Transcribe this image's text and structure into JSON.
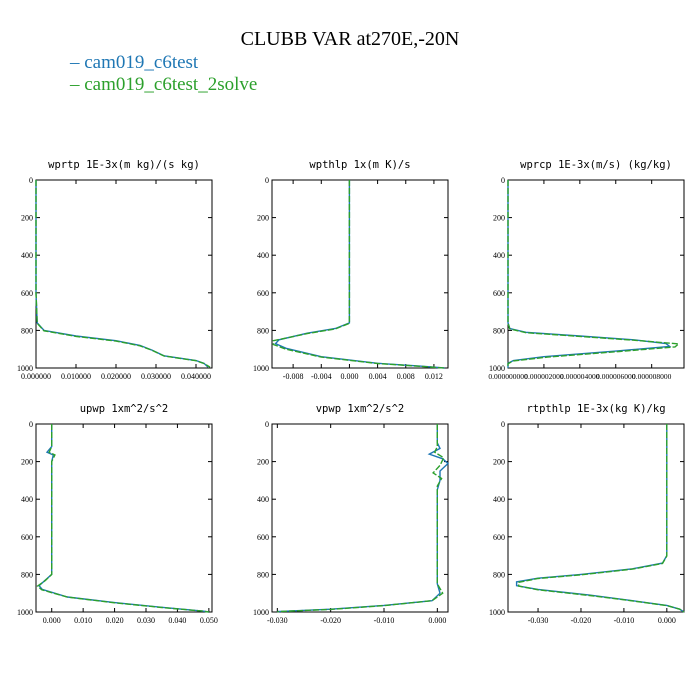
{
  "title": "CLUBB VAR at270E,-20N",
  "legend": [
    {
      "label": "cam019_c6test",
      "color": "#1f77b4"
    },
    {
      "label": "cam019_c6test_2solve",
      "color": "#2ca02c"
    }
  ],
  "chart_data": [
    {
      "type": "line",
      "title": "wprtp  1E-3x(m kg)/(s kg)",
      "xlim": [
        0,
        0.044
      ],
      "ylim": [
        1000,
        0
      ],
      "x_ticks": [
        "0.000000",
        "0.010000",
        "0.020000",
        "0.030000",
        "0.040000"
      ],
      "x_tick_values": [
        0,
        0.01,
        0.02,
        0.03,
        0.04
      ],
      "y_ticks": [
        "0",
        "200",
        "400",
        "600",
        "800",
        "1000"
      ],
      "series": [
        {
          "name": "cam019_c6test",
          "color": "#1f77b4",
          "points": [
            [
              0,
              0
            ],
            [
              0,
              600
            ],
            [
              0.0003,
              760
            ],
            [
              0.002,
              800
            ],
            [
              0.01,
              830
            ],
            [
              0.02,
              855
            ],
            [
              0.026,
              880
            ],
            [
              0.029,
              905
            ],
            [
              0.032,
              935
            ],
            [
              0.04,
              960
            ],
            [
              0.042,
              975
            ],
            [
              0.043,
              995
            ]
          ]
        },
        {
          "name": "cam019_c6test_2solve",
          "color": "#2ca02c",
          "points": [
            [
              0,
              0
            ],
            [
              0,
              600
            ],
            [
              0.0003,
              762
            ],
            [
              0.002,
              802
            ],
            [
              0.01,
              832
            ],
            [
              0.02,
              857
            ],
            [
              0.026,
              882
            ],
            [
              0.029,
              906
            ],
            [
              0.032,
              936
            ],
            [
              0.04,
              961
            ],
            [
              0.042,
              976
            ],
            [
              0.0435,
              995
            ]
          ]
        }
      ]
    },
    {
      "type": "line",
      "title": "wpthlp  1x(m K)/s",
      "xlim": [
        -0.011,
        0.014
      ],
      "ylim": [
        1000,
        0
      ],
      "x_ticks": [
        "-0.008",
        "-0.004",
        "0.000",
        "0.004",
        "0.008",
        "0.012"
      ],
      "x_tick_values": [
        -0.008,
        -0.004,
        0,
        0.004,
        0.008,
        0.012
      ],
      "y_ticks": [
        "0",
        "200",
        "400",
        "600",
        "800",
        "1000"
      ],
      "series": [
        {
          "name": "cam019_c6test",
          "color": "#1f77b4",
          "points": [
            [
              0,
              0
            ],
            [
              0,
              760
            ],
            [
              -0.002,
              790
            ],
            [
              -0.006,
              815
            ],
            [
              -0.01,
              850
            ],
            [
              -0.0105,
              870
            ],
            [
              -0.009,
              895
            ],
            [
              -0.004,
              940
            ],
            [
              0.004,
              975
            ],
            [
              0.01,
              990
            ],
            [
              0.0135,
              1000
            ]
          ]
        },
        {
          "name": "cam019_c6test_2solve",
          "color": "#2ca02c",
          "points": [
            [
              0,
              0
            ],
            [
              0,
              762
            ],
            [
              -0.002,
              792
            ],
            [
              -0.006,
              817
            ],
            [
              -0.0108,
              855
            ],
            [
              -0.0108,
              875
            ],
            [
              -0.009,
              900
            ],
            [
              -0.004,
              942
            ],
            [
              0.004,
              976
            ],
            [
              0.01,
              991
            ],
            [
              0.0135,
              1000
            ]
          ]
        }
      ]
    },
    {
      "type": "line",
      "title": "wprcp  1E-3x(m/s) (kg/kg)",
      "xlim": [
        0,
        9.8e-06
      ],
      "ylim": [
        1000,
        0
      ],
      "x_ticks": [
        "0.000000000",
        "0.000002000",
        "0.000004000",
        "0.000006000",
        "0.000008000"
      ],
      "x_tick_values": [
        0,
        2e-06,
        4e-06,
        6e-06,
        8e-06
      ],
      "y_ticks": [
        "0",
        "200",
        "400",
        "600",
        "800",
        "1000"
      ],
      "series": [
        {
          "name": "cam019_c6test",
          "color": "#1f77b4",
          "points": [
            [
              0,
              0
            ],
            [
              0,
              760
            ],
            [
              1e-07,
              790
            ],
            [
              1e-06,
              810
            ],
            [
              4e-06,
              830
            ],
            [
              7e-06,
              850
            ],
            [
              8.8e-06,
              870
            ],
            [
              9e-06,
              885
            ],
            [
              6e-06,
              910
            ],
            [
              2e-06,
              940
            ],
            [
              3e-07,
              960
            ],
            [
              0,
              975
            ],
            [
              0,
              1000
            ]
          ]
        },
        {
          "name": "cam019_c6test_2solve",
          "color": "#2ca02c",
          "points": [
            [
              0,
              0
            ],
            [
              0,
              762
            ],
            [
              1e-07,
              792
            ],
            [
              1e-06,
              812
            ],
            [
              4e-06,
              832
            ],
            [
              7e-06,
              852
            ],
            [
              9.5e-06,
              872
            ],
            [
              9.3e-06,
              888
            ],
            [
              6.2e-06,
              912
            ],
            [
              2.2e-06,
              942
            ],
            [
              3e-07,
              962
            ],
            [
              0,
              977
            ],
            [
              0,
              1000
            ]
          ]
        }
      ]
    },
    {
      "type": "line",
      "title": "upwp  1xm^2/s^2",
      "xlim": [
        -0.005,
        0.051
      ],
      "ylim": [
        1000,
        0
      ],
      "x_ticks": [
        "0.000",
        "0.010",
        "0.020",
        "0.030",
        "0.040",
        "0.050"
      ],
      "x_tick_values": [
        0,
        0.01,
        0.02,
        0.03,
        0.04,
        0.05
      ],
      "y_ticks": [
        "0",
        "200",
        "400",
        "600",
        "800",
        "1000"
      ],
      "series": [
        {
          "name": "cam019_c6test",
          "color": "#1f77b4",
          "points": [
            [
              0,
              0
            ],
            [
              0,
              120
            ],
            [
              -0.0015,
              150
            ],
            [
              0.0005,
              165
            ],
            [
              0,
              200
            ],
            [
              0,
              800
            ],
            [
              -0.002,
              830
            ],
            [
              -0.004,
              860
            ],
            [
              -0.003,
              880
            ],
            [
              0.005,
              920
            ],
            [
              0.02,
              950
            ],
            [
              0.035,
              975
            ],
            [
              0.048,
              995
            ],
            [
              0.05,
              1000
            ]
          ]
        },
        {
          "name": "cam019_c6test_2solve",
          "color": "#2ca02c",
          "points": [
            [
              0,
              0
            ],
            [
              0,
              120
            ],
            [
              -0.0008,
              150
            ],
            [
              0.001,
              165
            ],
            [
              0,
              200
            ],
            [
              0,
              800
            ],
            [
              -0.002,
              832
            ],
            [
              -0.0045,
              862
            ],
            [
              -0.0032,
              882
            ],
            [
              0.005,
              921
            ],
            [
              0.02,
              951
            ],
            [
              0.035,
              976
            ],
            [
              0.048,
              995
            ],
            [
              0.05,
              1000
            ]
          ]
        }
      ]
    },
    {
      "type": "line",
      "title": "vpwp  1xm^2/s^2",
      "xlim": [
        -0.031,
        0.002
      ],
      "ylim": [
        1000,
        0
      ],
      "x_ticks": [
        "-0.030",
        "-0.020",
        "-0.010",
        "0.000"
      ],
      "x_tick_values": [
        -0.03,
        -0.02,
        -0.01,
        0
      ],
      "y_ticks": [
        "0",
        "200",
        "400",
        "600",
        "800",
        "1000"
      ],
      "series": [
        {
          "name": "cam019_c6test",
          "color": "#1f77b4",
          "points": [
            [
              0,
              0
            ],
            [
              0,
              100
            ],
            [
              0.0005,
              130
            ],
            [
              -0.0015,
              160
            ],
            [
              0.001,
              185
            ],
            [
              0.002,
              210
            ],
            [
              0.0005,
              250
            ],
            [
              0.0005,
              300
            ],
            [
              0,
              350
            ],
            [
              0,
              850
            ],
            [
              0.0005,
              900
            ],
            [
              -0.001,
              940
            ],
            [
              -0.01,
              965
            ],
            [
              -0.02,
              985
            ],
            [
              -0.03,
              998
            ]
          ]
        },
        {
          "name": "cam019_c6test_2solve",
          "color": "#2ca02c",
          "points": [
            [
              0,
              0
            ],
            [
              0,
              120
            ],
            [
              -0.0005,
              150
            ],
            [
              0.0012,
              180
            ],
            [
              0.0005,
              220
            ],
            [
              -0.0008,
              260
            ],
            [
              0.0008,
              290
            ],
            [
              0,
              330
            ],
            [
              0,
              850
            ],
            [
              0.001,
              900
            ],
            [
              -0.001,
              940
            ],
            [
              -0.01,
              966
            ],
            [
              -0.02,
              986
            ],
            [
              -0.03,
              998
            ]
          ]
        }
      ]
    },
    {
      "type": "line",
      "title": "rtpthlp  1E-3x(kg K)/kg",
      "xlim": [
        -0.037,
        0.004
      ],
      "ylim": [
        1000,
        0
      ],
      "x_ticks": [
        "-0.030",
        "-0.020",
        "-0.010",
        "0.000"
      ],
      "x_tick_values": [
        -0.03,
        -0.02,
        -0.01,
        0
      ],
      "y_ticks": [
        "0",
        "200",
        "400",
        "600",
        "800",
        "1000"
      ],
      "series": [
        {
          "name": "cam019_c6test",
          "color": "#1f77b4",
          "points": [
            [
              0,
              0
            ],
            [
              0,
              700
            ],
            [
              -0.001,
              740
            ],
            [
              -0.008,
              770
            ],
            [
              -0.02,
              800
            ],
            [
              -0.03,
              820
            ],
            [
              -0.035,
              840
            ],
            [
              -0.035,
              860
            ],
            [
              -0.03,
              880
            ],
            [
              -0.018,
              910
            ],
            [
              -0.008,
              940
            ],
            [
              0,
              965
            ],
            [
              0.003,
              985
            ],
            [
              0.004,
              1000
            ]
          ]
        },
        {
          "name": "cam019_c6test_2solve",
          "color": "#2ca02c",
          "points": [
            [
              0,
              0
            ],
            [
              0,
              702
            ],
            [
              -0.001,
              742
            ],
            [
              -0.008,
              772
            ],
            [
              -0.02,
              802
            ],
            [
              -0.03,
              822
            ],
            [
              -0.0345,
              842
            ],
            [
              -0.0345,
              862
            ],
            [
              -0.03,
              882
            ],
            [
              -0.018,
              912
            ],
            [
              -0.008,
              941
            ],
            [
              0,
              966
            ],
            [
              0.003,
              985
            ],
            [
              0.004,
              1000
            ]
          ]
        }
      ]
    }
  ]
}
